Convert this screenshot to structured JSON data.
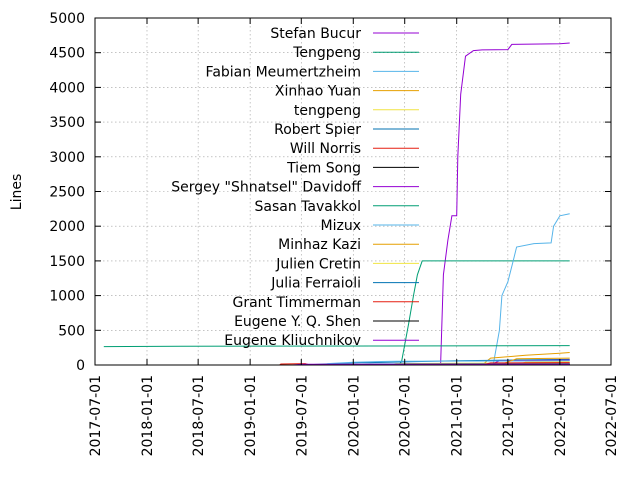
{
  "chart_data": {
    "type": "line",
    "ylabel": "Lines",
    "ylim": [
      0,
      5000
    ],
    "yticks": [
      0,
      500,
      1000,
      1500,
      2000,
      2500,
      3000,
      3500,
      4000,
      4500,
      5000
    ],
    "xlim": [
      "2017-07-01",
      "2022-07-01"
    ],
    "xtick_labels": [
      "2017-07-01",
      "2018-01-01",
      "2018-07-01",
      "2019-01-01",
      "2019-07-01",
      "2020-01-01",
      "2020-07-01",
      "2021-01-01",
      "2021-07-01",
      "2022-01-01",
      "2022-07-01"
    ],
    "grid": true,
    "legend_position": "top-right",
    "series": [
      {
        "name": "Stefan Bucur",
        "color": "#9400d3",
        "points": [
          [
            "2020-10-15",
            0
          ],
          [
            "2020-11-05",
            0
          ],
          [
            "2020-11-15",
            1300
          ],
          [
            "2020-12-01",
            1800
          ],
          [
            "2020-12-15",
            2150
          ],
          [
            "2021-01-01",
            2150
          ],
          [
            "2021-01-05",
            3000
          ],
          [
            "2021-01-15",
            3900
          ],
          [
            "2021-02-01",
            4450
          ],
          [
            "2021-03-01",
            4530
          ],
          [
            "2021-04-01",
            4540
          ],
          [
            "2021-07-01",
            4545
          ],
          [
            "2021-07-15",
            4620
          ],
          [
            "2022-01-01",
            4630
          ],
          [
            "2022-02-05",
            4640
          ]
        ]
      },
      {
        "name": "Tengpeng",
        "color": "#009e73",
        "points": [
          [
            "2020-06-10",
            0
          ],
          [
            "2020-06-20",
            50
          ],
          [
            "2020-07-15",
            600
          ],
          [
            "2020-08-01",
            1000
          ],
          [
            "2020-08-15",
            1300
          ],
          [
            "2020-09-01",
            1500
          ],
          [
            "2022-02-05",
            1500
          ]
        ]
      },
      {
        "name": "Fabian Meumertzheim",
        "color": "#56b4e9",
        "points": [
          [
            "2021-05-10",
            0
          ],
          [
            "2021-06-01",
            500
          ],
          [
            "2021-06-10",
            1000
          ],
          [
            "2021-07-01",
            1200
          ],
          [
            "2021-07-20",
            1500
          ],
          [
            "2021-08-01",
            1700
          ],
          [
            "2021-10-01",
            1750
          ],
          [
            "2021-12-01",
            1760
          ],
          [
            "2021-12-10",
            2000
          ],
          [
            "2022-01-01",
            2150
          ],
          [
            "2022-02-05",
            2180
          ]
        ]
      },
      {
        "name": "Xinhao Yuan",
        "color": "#e69f00",
        "points": [
          [
            "2021-04-01",
            0
          ],
          [
            "2021-05-01",
            100
          ],
          [
            "2021-09-01",
            140
          ],
          [
            "2022-01-01",
            170
          ],
          [
            "2022-02-05",
            180
          ]
        ]
      },
      {
        "name": "tengpeng",
        "color": "#f0e442",
        "points": [
          [
            "2020-05-01",
            0
          ],
          [
            "2020-06-01",
            20
          ],
          [
            "2021-01-01",
            25
          ],
          [
            "2022-02-05",
            30
          ]
        ]
      },
      {
        "name": "Robert Spier",
        "color": "#0072b2",
        "points": [
          [
            "2019-07-01",
            0
          ],
          [
            "2020-01-01",
            30
          ],
          [
            "2021-01-01",
            60
          ],
          [
            "2022-02-05",
            80
          ]
        ]
      },
      {
        "name": "Will Norris",
        "color": "#e51e10",
        "points": [
          [
            "2019-04-15",
            0
          ],
          [
            "2019-04-20",
            15
          ],
          [
            "2019-07-15",
            20
          ],
          [
            "2019-08-01",
            0
          ]
        ]
      },
      {
        "name": "Tiem Song",
        "color": "#000000",
        "points": [
          [
            "2019-12-01",
            0
          ],
          [
            "2020-06-01",
            10
          ],
          [
            "2022-02-05",
            12
          ]
        ]
      },
      {
        "name": "Sergey \"Shnatsel\" Davidoff",
        "color": "#9400d3",
        "points": [
          [
            "2021-05-01",
            0
          ],
          [
            "2021-06-01",
            60
          ],
          [
            "2022-02-05",
            70
          ]
        ]
      },
      {
        "name": "Sasan Tavakkol",
        "color": "#009e73",
        "points": [
          [
            "2017-08-01",
            265
          ],
          [
            "2018-05-01",
            270
          ],
          [
            "2022-02-05",
            280
          ]
        ]
      },
      {
        "name": "Mizux",
        "color": "#56b4e9",
        "points": [
          [
            "2019-10-01",
            20
          ],
          [
            "2020-01-01",
            40
          ],
          [
            "2020-06-01",
            55
          ],
          [
            "2022-02-05",
            60
          ]
        ]
      },
      {
        "name": "Minhaz Kazi",
        "color": "#e69f00",
        "points": [
          [
            "2021-06-01",
            0
          ],
          [
            "2021-08-01",
            90
          ],
          [
            "2022-02-05",
            100
          ]
        ]
      },
      {
        "name": "Julien Cretin",
        "color": "#f0e442",
        "points": [
          [
            "2021-08-01",
            0
          ],
          [
            "2021-09-01",
            40
          ],
          [
            "2022-02-05",
            45
          ]
        ]
      },
      {
        "name": "Julia Ferraioli",
        "color": "#0072b2",
        "points": [
          [
            "2020-01-01",
            0
          ],
          [
            "2020-03-01",
            15
          ],
          [
            "2022-02-05",
            18
          ]
        ]
      },
      {
        "name": "Grant Timmerman",
        "color": "#e51e10",
        "points": [
          [
            "2021-04-01",
            0
          ],
          [
            "2021-05-01",
            30
          ],
          [
            "2022-02-05",
            35
          ]
        ]
      },
      {
        "name": "Eugene Y. Q. Shen",
        "color": "#000000",
        "points": [
          [
            "2020-06-01",
            0
          ],
          [
            "2020-07-01",
            8
          ],
          [
            "2022-02-05",
            10
          ]
        ]
      },
      {
        "name": "Eugene Kliuchnikov",
        "color": "#9400d3",
        "points": [
          [
            "2019-06-01",
            0
          ],
          [
            "2019-07-01",
            10
          ],
          [
            "2022-02-05",
            12
          ]
        ]
      }
    ]
  }
}
